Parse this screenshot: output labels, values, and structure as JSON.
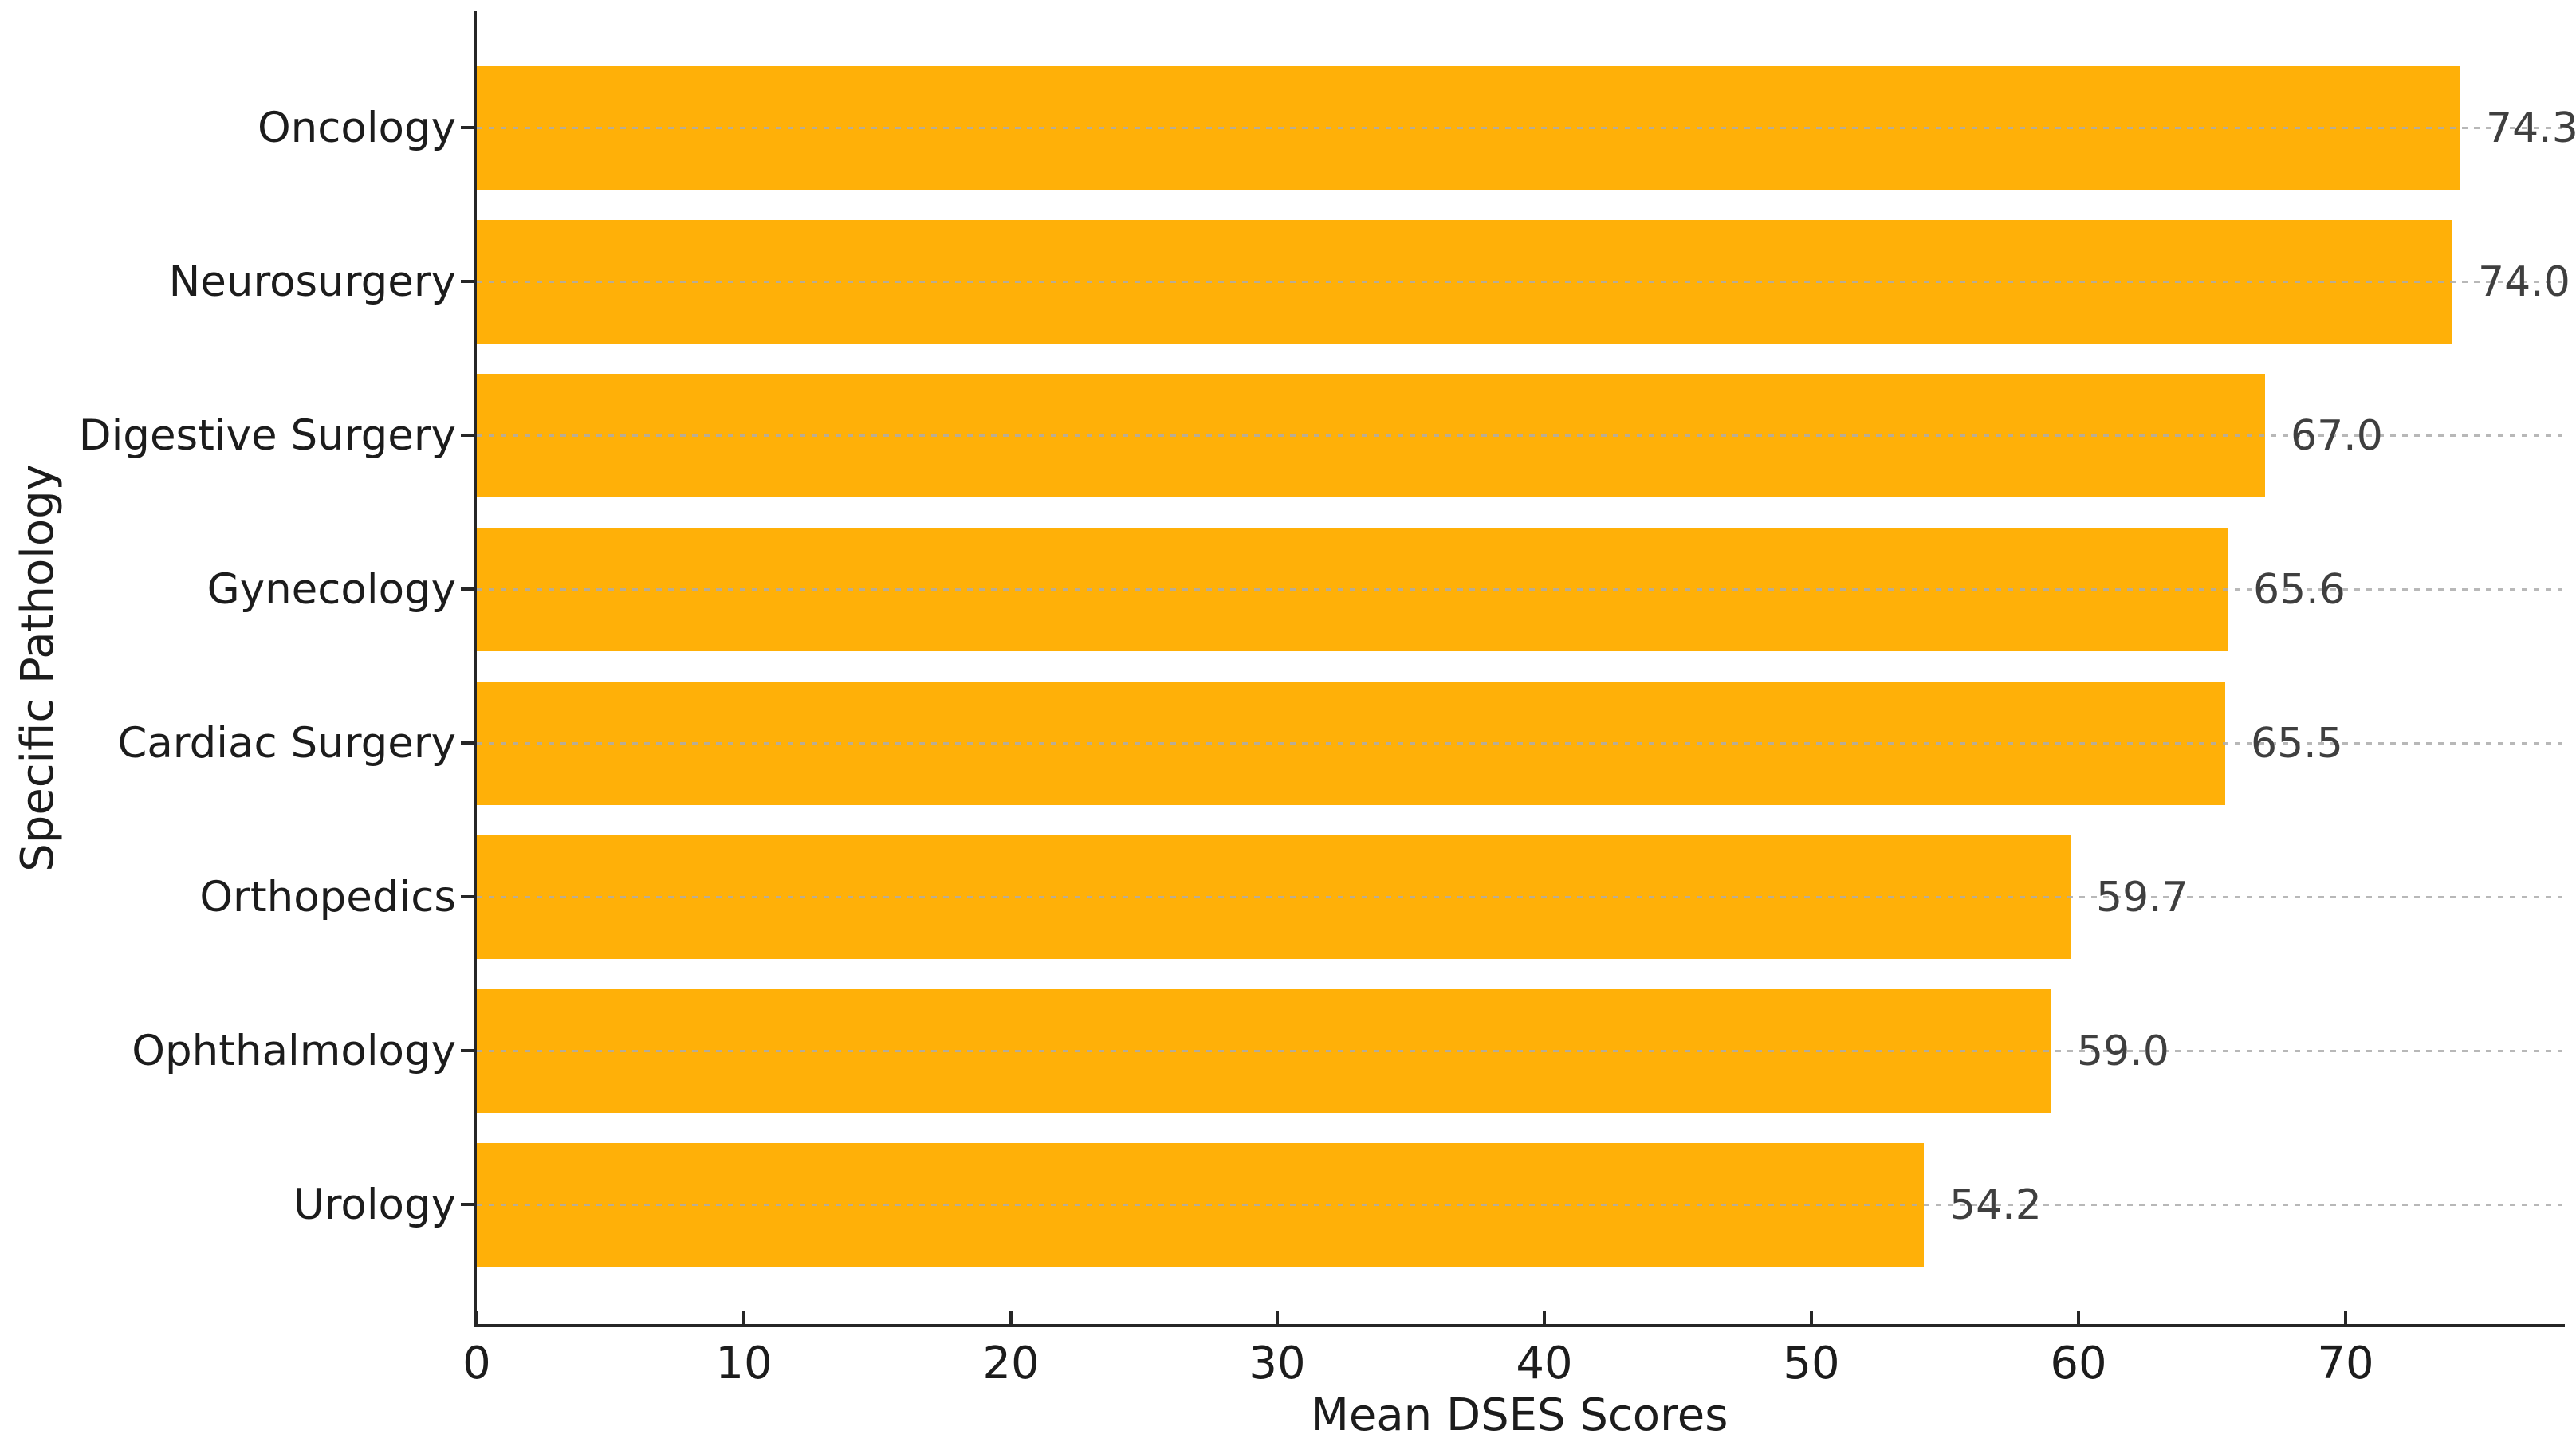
{
  "chart_data": {
    "type": "bar",
    "orientation": "horizontal",
    "title": "",
    "xlabel": "Mean DSES Scores",
    "ylabel": "Specific Pathology",
    "categories": [
      "Oncology",
      "Neurosurgery",
      "Digestive Surgery",
      "Gynecology",
      "Cardiac Surgery",
      "Orthopedics",
      "Ophthalmology",
      "Urology"
    ],
    "values": [
      74.3,
      74.0,
      67.0,
      65.6,
      65.5,
      59.7,
      59.0,
      54.2
    ],
    "value_labels": [
      "74.3",
      "74.0",
      "67.0",
      "65.6",
      "65.5",
      "59.7",
      "59.0",
      "54.2"
    ],
    "x_ticks": [
      0,
      10,
      20,
      30,
      40,
      50,
      60,
      70
    ],
    "x_tick_labels": [
      "0",
      "10",
      "20",
      "30",
      "40",
      "50",
      "60",
      "70"
    ],
    "xlim": [
      0,
      78.1
    ],
    "grid": "horizontal dashed gridline at each category center, drawn over bars",
    "legend": "none",
    "colors": {
      "bar": "#FFB008",
      "gridline": "#acacac",
      "spine": "#262626",
      "tick_text": "#1c1c1c",
      "value_text": "#3f3f3f"
    }
  }
}
